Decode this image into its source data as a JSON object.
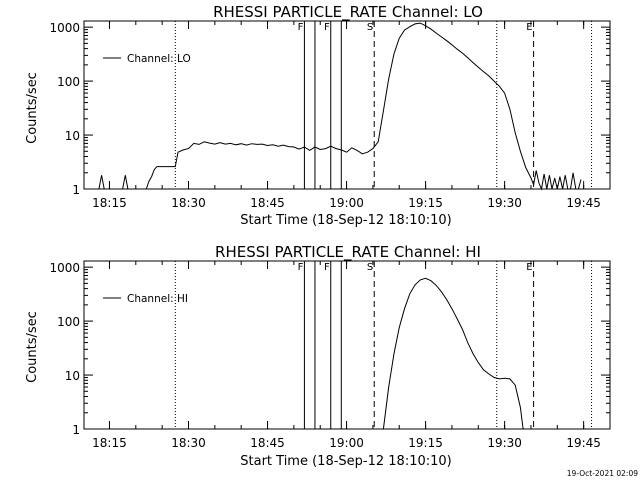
{
  "footer": {
    "timestamp": "19-Oct-2021 02:09"
  },
  "chart_data": [
    {
      "type": "line",
      "title": "RHESSI PARTICLE_RATE Channel: LO",
      "xlabel": "Start Time (18-Sep-12 18:10:10)",
      "ylabel": "Counts/sec",
      "y_scale": "log",
      "ylim": [
        1,
        1300
      ],
      "xlim": [
        "18:10:10",
        "19:50:00"
      ],
      "x_ticks": [
        "18:15",
        "18:30",
        "18:45",
        "19:00",
        "19:15",
        "19:30",
        "19:45"
      ],
      "y_ticks": [
        "1",
        "10",
        "100",
        "1000"
      ],
      "legend": {
        "position": "top-left",
        "entries": [
          "Channel: LO"
        ]
      },
      "event_markers": [
        {
          "label": "F",
          "style": "solid",
          "times": [
            "18:52:00",
            "18:54:00"
          ]
        },
        {
          "label": "F",
          "style": "solid",
          "times": [
            "18:57:00",
            "18:59:00"
          ]
        },
        {
          "label": "S",
          "style": "dashed",
          "times": [
            "19:05:15"
          ]
        },
        {
          "label": "E",
          "style": "dashed",
          "times": [
            "19:35:30"
          ]
        },
        {
          "label": "",
          "style": "dotted",
          "times": [
            "18:27:30",
            "19:28:30",
            "19:46:30"
          ]
        }
      ],
      "series": [
        {
          "name": "Channel: LO",
          "x": [
            "18:13:00",
            "18:13:30",
            "18:14:00",
            "18:14:30",
            "18:17:30",
            "18:18:00",
            "18:18:30",
            "18:22:00",
            "18:22:30",
            "18:23:00",
            "18:23:30",
            "18:24:00",
            "18:24:30",
            "18:25:00",
            "18:26:00",
            "18:27:30",
            "18:28:00",
            "18:29:00",
            "18:30:00",
            "18:31:00",
            "18:32:00",
            "18:33:00",
            "18:34:00",
            "18:35:00",
            "18:36:00",
            "18:37:00",
            "18:38:00",
            "18:39:00",
            "18:40:00",
            "18:41:00",
            "18:42:00",
            "18:43:00",
            "18:44:00",
            "18:45:00",
            "18:46:00",
            "18:47:00",
            "18:48:00",
            "18:49:00",
            "18:50:00",
            "18:51:00",
            "18:52:00",
            "18:53:00",
            "18:54:00",
            "18:55:00",
            "18:56:00",
            "18:57:00",
            "18:58:00",
            "18:59:00",
            "19:00:00",
            "19:01:00",
            "19:02:00",
            "19:03:00",
            "19:04:00",
            "19:05:00",
            "19:06:00",
            "19:07:00",
            "19:08:00",
            "19:09:00",
            "19:10:00",
            "19:11:00",
            "19:12:00",
            "19:13:00",
            "19:14:00",
            "19:15:00",
            "19:16:00",
            "19:17:00",
            "19:18:00",
            "19:19:00",
            "19:20:00",
            "19:21:00",
            "19:22:00",
            "19:23:00",
            "19:24:00",
            "19:25:00",
            "19:26:00",
            "19:27:00",
            "19:28:00",
            "19:29:00",
            "19:30:00",
            "19:31:00",
            "19:32:00",
            "19:33:00",
            "19:34:00",
            "19:35:00",
            "19:35:30",
            "19:36:00",
            "19:36:30",
            "19:37:00",
            "19:37:30",
            "19:38:00",
            "19:38:30",
            "19:39:00",
            "19:39:30",
            "19:40:00",
            "19:40:30",
            "19:41:00",
            "19:41:30",
            "19:42:00",
            "19:42:30",
            "19:43:00",
            "19:43:30",
            "19:44:00",
            "19:44:30"
          ],
          "y": [
            1,
            1.8,
            1,
            1,
            1,
            1.8,
            1,
            1,
            1.4,
            1.7,
            2.3,
            2.6,
            2.6,
            2.6,
            2.6,
            2.6,
            4.8,
            5.3,
            5.6,
            7,
            6.7,
            7.5,
            7.1,
            6.8,
            7.2,
            6.8,
            7,
            6.6,
            6.9,
            6.5,
            6.9,
            6.7,
            6.8,
            6.4,
            6.6,
            6.2,
            6.5,
            6.1,
            6,
            5.5,
            6,
            5.2,
            6,
            5.4,
            5.6,
            6.2,
            5.6,
            5.3,
            4.8,
            5.8,
            5.2,
            4.5,
            4.8,
            5.6,
            7.5,
            28,
            110,
            320,
            620,
            880,
            1020,
            1150,
            1190,
            1060,
            920,
            780,
            660,
            560,
            470,
            390,
            330,
            270,
            220,
            180,
            150,
            125,
            100,
            80,
            60,
            30,
            11,
            5,
            2.5,
            1.6,
            1.2,
            2.2,
            1.3,
            1,
            1.9,
            1,
            1.8,
            1,
            1.6,
            1,
            1.7,
            1,
            1.8,
            1,
            1,
            2,
            1,
            1,
            1.5
          ]
        }
      ]
    },
    {
      "type": "line",
      "title": "RHESSI PARTICLE_RATE Channel: HI",
      "xlabel": "Start Time (18-Sep-12 18:10:10)",
      "ylabel": "Counts/sec",
      "y_scale": "log",
      "ylim": [
        1,
        1300
      ],
      "xlim": [
        "18:10:10",
        "19:50:00"
      ],
      "x_ticks": [
        "18:15",
        "18:30",
        "18:45",
        "19:00",
        "19:15",
        "19:30",
        "19:45"
      ],
      "y_ticks": [
        "1",
        "10",
        "100",
        "1000"
      ],
      "legend": {
        "position": "top-left",
        "entries": [
          "Channel: HI"
        ]
      },
      "event_markers": [
        {
          "label": "F",
          "style": "solid",
          "times": [
            "18:52:00",
            "18:54:00"
          ]
        },
        {
          "label": "F",
          "style": "solid",
          "times": [
            "18:57:00",
            "18:59:00"
          ]
        },
        {
          "label": "S",
          "style": "dashed",
          "times": [
            "19:05:15"
          ]
        },
        {
          "label": "E",
          "style": "dashed",
          "times": [
            "19:35:30"
          ]
        },
        {
          "label": "",
          "style": "dotted",
          "times": [
            "18:27:30",
            "19:28:30",
            "19:46:30"
          ]
        }
      ],
      "series": [
        {
          "name": "Channel: HI",
          "x": [
            "19:07:00",
            "19:08:00",
            "19:09:00",
            "19:10:00",
            "19:11:00",
            "19:12:00",
            "19:13:00",
            "19:14:00",
            "19:15:00",
            "19:16:00",
            "19:17:00",
            "19:18:00",
            "19:19:00",
            "19:20:00",
            "19:21:00",
            "19:22:00",
            "19:23:00",
            "19:24:00",
            "19:25:00",
            "19:26:00",
            "19:27:00",
            "19:28:00",
            "19:29:00",
            "19:30:00",
            "19:31:00",
            "19:32:00",
            "19:33:00",
            "19:33:30"
          ],
          "y": [
            1,
            6,
            25,
            75,
            170,
            320,
            470,
            580,
            620,
            560,
            460,
            350,
            250,
            170,
            110,
            70,
            40,
            25,
            17,
            12.5,
            10.5,
            9,
            8.5,
            8.7,
            8.5,
            6.5,
            2.5,
            1
          ]
        }
      ]
    }
  ]
}
